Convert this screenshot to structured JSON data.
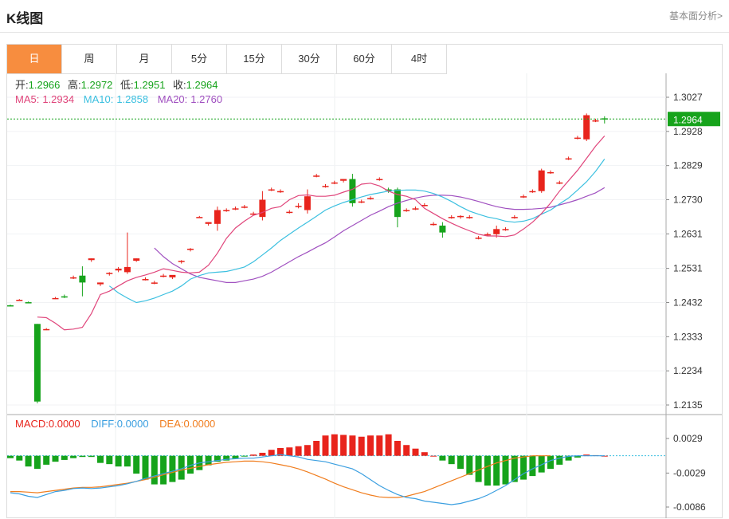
{
  "header": {
    "title": "K线图",
    "link": "基本面分析>"
  },
  "tabs": [
    {
      "label": "日",
      "active": true
    },
    {
      "label": "周",
      "active": false
    },
    {
      "label": "月",
      "active": false
    },
    {
      "label": "5分",
      "active": false
    },
    {
      "label": "15分",
      "active": false
    },
    {
      "label": "30分",
      "active": false
    },
    {
      "label": "60分",
      "active": false
    },
    {
      "label": "4时",
      "active": false
    }
  ],
  "info": {
    "open_label": "开:",
    "open": "1.2966",
    "high_label": "高:",
    "high": "1.2972",
    "low_label": "低:",
    "low": "1.2951",
    "close_label": "收:",
    "close": "1.2964",
    "ma5_label": "MA5:",
    "ma5": "1.2934",
    "ma10_label": "MA10:",
    "ma10": "1.2858",
    "ma20_label": "MA20:",
    "ma20": "1.2760"
  },
  "macd_info": {
    "macd_label": "MACD:",
    "macd": "0.0000",
    "diff_label": "DIFF:",
    "diff": "0.0000",
    "dea_label": "DEA:",
    "dea": "0.0000"
  },
  "colors": {
    "up": "#e8241c",
    "down": "#16a31b",
    "ma5": "#e0457b",
    "ma10": "#3cc0e0",
    "ma20": "#a050c0",
    "diff": "#3b9fe0",
    "dea": "#f07d1e",
    "accent": "#f78d3f",
    "price_tag": "#16a31b"
  },
  "chart_data": [
    {
      "type": "candlestick",
      "y_ticks": [
        1.3027,
        1.2928,
        1.2829,
        1.273,
        1.2631,
        1.2531,
        1.2432,
        1.2333,
        1.2234,
        1.2135
      ],
      "ylim": [
        1.2135,
        1.3027
      ],
      "current_price": 1.2964,
      "candles": [
        [
          1.2424,
          1.2426,
          1.2421,
          1.2423
        ],
        [
          1.244,
          1.2442,
          1.2437,
          1.244
        ],
        [
          1.2433,
          1.2435,
          1.243,
          1.2432
        ],
        [
          1.237,
          1.237,
          1.214,
          1.2145
        ],
        [
          1.2355,
          1.2358,
          1.2352,
          1.2355
        ],
        [
          1.2445,
          1.2448,
          1.2442,
          1.2445
        ],
        [
          1.245,
          1.2455,
          1.2445,
          1.2447
        ],
        [
          1.2505,
          1.251,
          1.25,
          1.2505
        ],
        [
          1.251,
          1.2537,
          1.245,
          1.249
        ],
        [
          1.2555,
          1.256,
          1.255,
          1.256
        ],
        [
          1.2485,
          1.249,
          1.248,
          1.249
        ],
        [
          1.2515,
          1.252,
          1.251,
          1.2518
        ],
        [
          1.2525,
          1.2535,
          1.252,
          1.253
        ],
        [
          1.252,
          1.2635,
          1.2515,
          1.2535
        ],
        [
          1.2553,
          1.256,
          1.255,
          1.256
        ],
        [
          1.25,
          1.2505,
          1.2496,
          1.25
        ],
        [
          1.249,
          1.2495,
          1.2485,
          1.249
        ],
        [
          1.251,
          1.2515,
          1.2505,
          1.251
        ],
        [
          1.2505,
          1.251,
          1.25,
          1.2512
        ],
        [
          1.255,
          1.2555,
          1.2545,
          1.2553
        ],
        [
          1.2585,
          1.259,
          1.258,
          1.2588
        ],
        [
          1.268,
          1.2683,
          1.2678,
          1.268
        ],
        [
          1.266,
          1.2665,
          1.2655,
          1.2665
        ],
        [
          1.266,
          1.271,
          1.264,
          1.27
        ],
        [
          1.27,
          1.2705,
          1.2695,
          1.27
        ],
        [
          1.2705,
          1.271,
          1.27,
          1.2705
        ],
        [
          1.271,
          1.2715,
          1.2705,
          1.271
        ],
        [
          1.269,
          1.2695,
          1.2685,
          1.269
        ],
        [
          1.268,
          1.2755,
          1.267,
          1.273
        ],
        [
          1.276,
          1.2765,
          1.2755,
          1.276
        ],
        [
          1.2755,
          1.276,
          1.275,
          1.2755
        ],
        [
          1.2695,
          1.27,
          1.269,
          1.2695
        ],
        [
          1.2712,
          1.272,
          1.2705,
          1.2712
        ],
        [
          1.27,
          1.276,
          1.269,
          1.274
        ],
        [
          1.28,
          1.2805,
          1.2795,
          1.28
        ],
        [
          1.277,
          1.2775,
          1.2765,
          1.277
        ],
        [
          1.278,
          1.2785,
          1.2775,
          1.278
        ],
        [
          1.2785,
          1.279,
          1.278,
          1.279
        ],
        [
          1.279,
          1.2805,
          1.271,
          1.272
        ],
        [
          1.2725,
          1.273,
          1.272,
          1.2725
        ],
        [
          1.2735,
          1.274,
          1.273,
          1.2735
        ],
        [
          1.279,
          1.2795,
          1.2785,
          1.279
        ],
        [
          1.276,
          1.2765,
          1.275,
          1.2758
        ],
        [
          1.276,
          1.2765,
          1.265,
          1.268
        ],
        [
          1.27,
          1.2705,
          1.2695,
          1.27
        ],
        [
          1.2705,
          1.271,
          1.27,
          1.2705
        ],
        [
          1.2715,
          1.272,
          1.271,
          1.2715
        ],
        [
          1.266,
          1.2665,
          1.2655,
          1.266
        ],
        [
          1.2655,
          1.2665,
          1.262,
          1.2635
        ],
        [
          1.268,
          1.2685,
          1.2675,
          1.268
        ],
        [
          1.268,
          1.2685,
          1.2675,
          1.2683
        ],
        [
          1.268,
          1.2685,
          1.2675,
          1.268
        ],
        [
          1.262,
          1.2625,
          1.2615,
          1.262
        ],
        [
          1.263,
          1.2635,
          1.2625,
          1.263
        ],
        [
          1.263,
          1.2655,
          1.262,
          1.2645
        ],
        [
          1.2645,
          1.265,
          1.264,
          1.2645
        ],
        [
          1.268,
          1.2685,
          1.2675,
          1.268
        ],
        [
          1.274,
          1.2745,
          1.2735,
          1.274
        ],
        [
          1.2755,
          1.276,
          1.275,
          1.2755
        ],
        [
          1.2755,
          1.282,
          1.275,
          1.2815
        ],
        [
          1.281,
          1.2815,
          1.2805,
          1.281
        ],
        [
          1.278,
          1.2785,
          1.2775,
          1.278
        ],
        [
          1.285,
          1.2855,
          1.2845,
          1.285
        ],
        [
          1.291,
          1.2915,
          1.2905,
          1.291
        ],
        [
          1.2905,
          1.298,
          1.29,
          1.2975
        ],
        [
          1.296,
          1.2965,
          1.2955,
          1.296
        ],
        [
          1.2966,
          1.2972,
          1.2951,
          1.2964
        ]
      ],
      "ma5": [
        1.239,
        1.2388,
        1.2372,
        1.2353,
        1.2355,
        1.236,
        1.24,
        1.2455,
        1.2465,
        1.248,
        1.2495,
        1.2505,
        1.2512,
        1.252,
        1.253,
        1.2525,
        1.252,
        1.2518,
        1.252,
        1.254,
        1.2575,
        1.2618,
        1.2648,
        1.2668,
        1.2685,
        1.2693,
        1.2705,
        1.271,
        1.273,
        1.2742,
        1.2744,
        1.274,
        1.274,
        1.2743,
        1.2752,
        1.276,
        1.2775,
        1.2778,
        1.277,
        1.2755,
        1.2745,
        1.274,
        1.273,
        1.2705,
        1.269,
        1.2675,
        1.2662,
        1.265,
        1.264,
        1.263,
        1.2625,
        1.2625,
        1.2623,
        1.2628,
        1.2645,
        1.2665,
        1.269,
        1.272,
        1.2755,
        1.2785,
        1.2815,
        1.285,
        1.2885,
        1.2915
      ],
      "ma10": [
        1.248,
        1.246,
        1.2445,
        1.2432,
        1.2437,
        1.2445,
        1.2455,
        1.2465,
        1.248,
        1.25,
        1.251,
        1.2518,
        1.252,
        1.2522,
        1.2528,
        1.2535,
        1.255,
        1.257,
        1.259,
        1.2612,
        1.263,
        1.2648,
        1.2665,
        1.2682,
        1.27,
        1.2712,
        1.2722,
        1.273,
        1.2738,
        1.2745,
        1.275,
        1.2755,
        1.2757,
        1.2758,
        1.2758,
        1.2755,
        1.2748,
        1.2738,
        1.2725,
        1.271,
        1.2697,
        1.2688,
        1.268,
        1.2675,
        1.2668,
        1.2665,
        1.2668,
        1.2675,
        1.2688,
        1.27,
        1.2718,
        1.2735,
        1.2758,
        1.2782,
        1.2812,
        1.2848
      ],
      "ma20": [
        1.259,
        1.2565,
        1.2545,
        1.253,
        1.2515,
        1.2505,
        1.25,
        1.2495,
        1.249,
        1.249,
        1.2495,
        1.25,
        1.2508,
        1.252,
        1.2535,
        1.255,
        1.2565,
        1.2578,
        1.2592,
        1.2605,
        1.2622,
        1.264,
        1.2655,
        1.267,
        1.2685,
        1.2697,
        1.271,
        1.272,
        1.2728,
        1.2735,
        1.274,
        1.2743,
        1.2743,
        1.2742,
        1.2738,
        1.2732,
        1.2725,
        1.2717,
        1.271,
        1.2705,
        1.2702,
        1.2702,
        1.2703,
        1.2705,
        1.2708,
        1.2715,
        1.2722,
        1.273,
        1.274,
        1.275,
        1.2765
      ]
    },
    {
      "type": "macd",
      "y_ticks": [
        0.0029,
        -0.0029,
        -0.0086
      ],
      "ylim": [
        -0.0098,
        0.0052
      ],
      "macd": [
        -0.0004,
        -0.0008,
        -0.0018,
        -0.0022,
        -0.0015,
        -0.001,
        -0.0007,
        -0.0004,
        -0.0002,
        -0.0002,
        -0.0012,
        -0.0014,
        -0.0018,
        -0.0018,
        -0.003,
        -0.004,
        -0.0048,
        -0.0048,
        -0.0044,
        -0.004,
        -0.003,
        -0.0024,
        -0.0016,
        -0.001,
        -0.0008,
        -0.0005,
        -0.0001,
        0.0002,
        0.0005,
        0.001,
        0.0013,
        0.0014,
        0.0016,
        0.0018,
        0.0025,
        0.0034,
        0.0036,
        0.0035,
        0.0034,
        0.0032,
        0.0034,
        0.0034,
        0.0036,
        0.0025,
        0.0018,
        0.0012,
        0.0006,
        0.0,
        -0.0008,
        -0.0014,
        -0.0022,
        -0.0032,
        -0.0044,
        -0.005,
        -0.005,
        -0.0048,
        -0.0044,
        -0.004,
        -0.0034,
        -0.0028,
        -0.0022,
        -0.0015,
        -0.0008,
        -0.0003,
        0.0002,
        0.0001,
        0.0
      ],
      "diff": [
        -0.0062,
        -0.0064,
        -0.0068,
        -0.007,
        -0.0065,
        -0.006,
        -0.0058,
        -0.0055,
        -0.0054,
        -0.0055,
        -0.0054,
        -0.0052,
        -0.005,
        -0.0047,
        -0.0043,
        -0.0038,
        -0.0034,
        -0.003,
        -0.0026,
        -0.0022,
        -0.0016,
        -0.0012,
        -0.001,
        -0.0008,
        -0.0006,
        -0.0005,
        -0.0004,
        -0.0004,
        -0.0002,
        0.0,
        0.0002,
        0.0,
        -0.0002,
        -0.0006,
        -0.0008,
        -0.001,
        -0.0014,
        -0.0018,
        -0.0022,
        -0.003,
        -0.004,
        -0.005,
        -0.0058,
        -0.0065,
        -0.007,
        -0.0072,
        -0.0076,
        -0.0078,
        -0.008,
        -0.0082,
        -0.008,
        -0.0076,
        -0.0072,
        -0.0066,
        -0.0058,
        -0.005,
        -0.004,
        -0.003,
        -0.0022,
        -0.0015,
        -0.0008,
        -0.0004,
        -0.0001,
        0.0,
        0.0,
        0.0,
        0.0
      ],
      "dea": [
        -0.006,
        -0.006,
        -0.0061,
        -0.0062,
        -0.006,
        -0.0058,
        -0.0056,
        -0.0054,
        -0.0053,
        -0.0053,
        -0.0052,
        -0.005,
        -0.0048,
        -0.0046,
        -0.0043,
        -0.004,
        -0.0036,
        -0.0032,
        -0.0028,
        -0.0024,
        -0.0021,
        -0.0018,
        -0.0015,
        -0.0013,
        -0.0011,
        -0.001,
        -0.0009,
        -0.0009,
        -0.001,
        -0.0012,
        -0.0015,
        -0.0018,
        -0.0022,
        -0.0027,
        -0.0033,
        -0.0039,
        -0.0046,
        -0.0052,
        -0.0057,
        -0.0062,
        -0.0066,
        -0.0069,
        -0.007,
        -0.007,
        -0.0068,
        -0.0064,
        -0.006,
        -0.0054,
        -0.0048,
        -0.0042,
        -0.0036,
        -0.003,
        -0.0024,
        -0.0018,
        -0.0012,
        -0.0008,
        -0.0004,
        -0.0002,
        0.0,
        0.0,
        0.0
      ]
    }
  ]
}
